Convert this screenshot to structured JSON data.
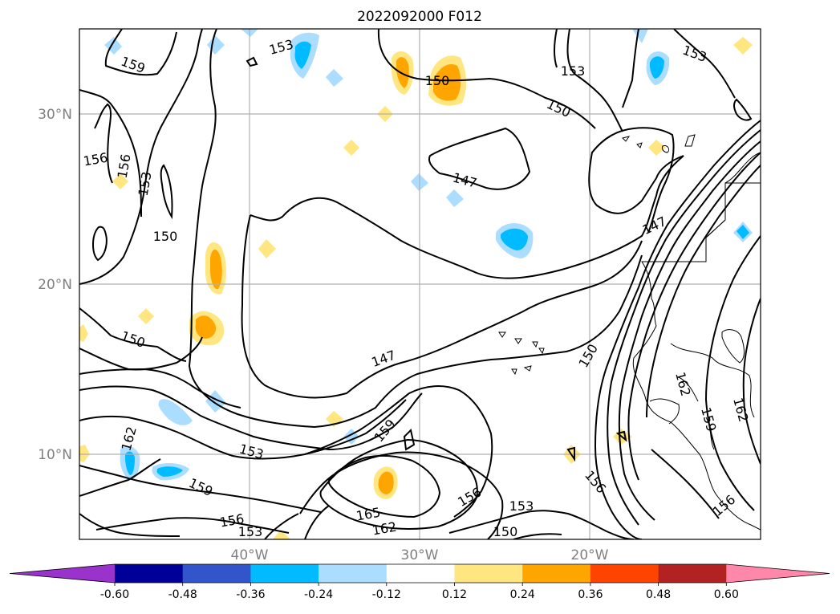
{
  "title": "2022092000 F012",
  "map": {
    "lat_labels": [
      "30°N",
      "20°N",
      "10°N"
    ],
    "lon_labels": [
      "40°W",
      "30°W",
      "20°W"
    ],
    "grid": true,
    "contour_labels": [
      "159",
      "153",
      "150",
      "153",
      "153",
      "150",
      "156",
      "156",
      "153",
      "150",
      "147",
      "147",
      "150",
      "147",
      "150",
      "159",
      "162",
      "153",
      "159",
      "156",
      "153",
      "165",
      "162",
      "156",
      "153",
      "150",
      "156",
      "162",
      "159",
      "162",
      "156"
    ]
  },
  "colorbar": {
    "ticks": [
      "-0.60",
      "-0.48",
      "-0.36",
      "-0.24",
      "-0.12",
      "0.12",
      "0.24",
      "0.36",
      "0.48",
      "0.60"
    ],
    "colors": [
      "#9933cc",
      "#000099",
      "#3355cc",
      "#00bbff",
      "#aaddff",
      "#ffffff",
      "#ffe680",
      "#ffa500",
      "#ff4400",
      "#b22222",
      "#ff88aa"
    ]
  }
}
